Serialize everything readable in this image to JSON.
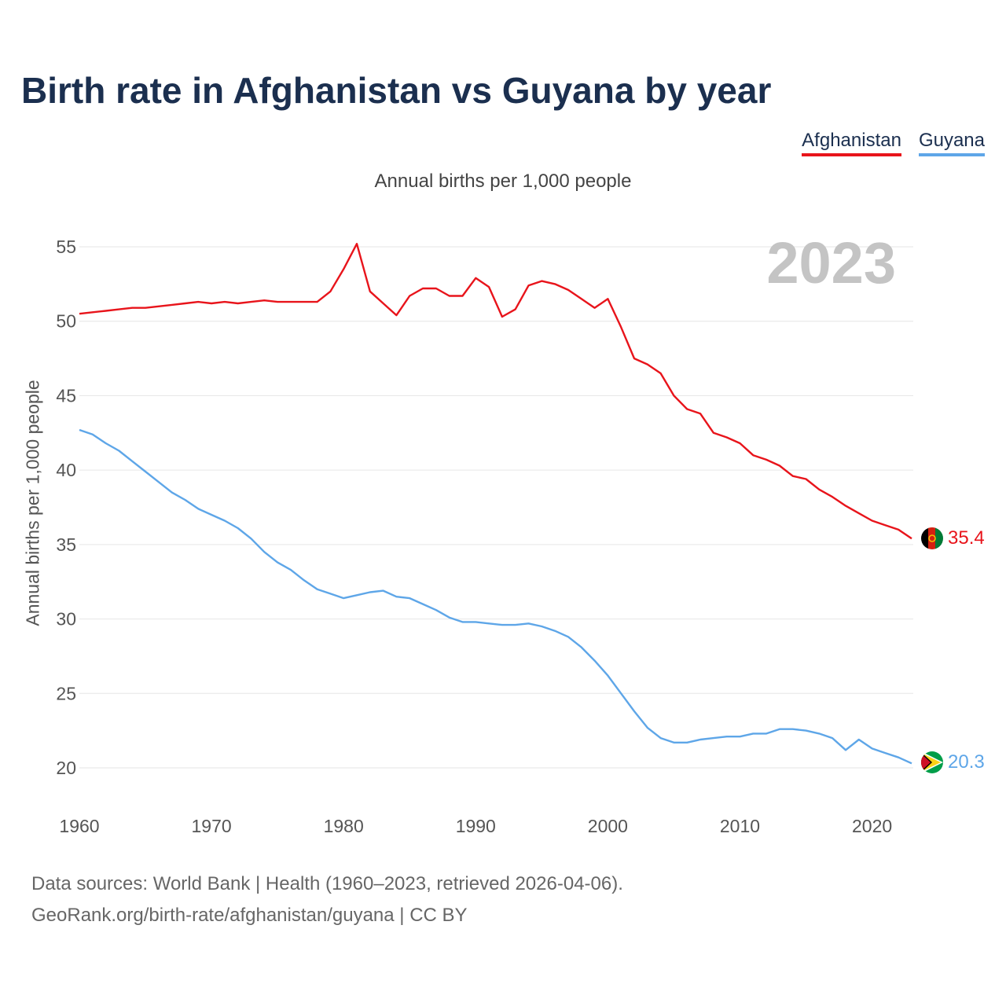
{
  "chart_data": {
    "type": "line",
    "title": "Birth rate in Afghanistan vs Guyana by year",
    "subtitle": "Annual births per 1,000 people",
    "ylabel": "Annual births per 1,000 people",
    "xlabel": "",
    "year_label": "2023",
    "xlim": [
      1960,
      2023
    ],
    "ylim": [
      18,
      57
    ],
    "yticks": [
      20,
      25,
      30,
      35,
      40,
      45,
      50,
      55
    ],
    "xticks": [
      1960,
      1970,
      1980,
      1990,
      2000,
      2010,
      2020
    ],
    "x": [
      1960,
      1961,
      1962,
      1963,
      1964,
      1965,
      1966,
      1967,
      1968,
      1969,
      1970,
      1971,
      1972,
      1973,
      1974,
      1975,
      1976,
      1977,
      1978,
      1979,
      1980,
      1981,
      1982,
      1983,
      1984,
      1985,
      1986,
      1987,
      1988,
      1989,
      1990,
      1991,
      1992,
      1993,
      1994,
      1995,
      1996,
      1997,
      1998,
      1999,
      2000,
      2001,
      2002,
      2003,
      2004,
      2005,
      2006,
      2007,
      2008,
      2009,
      2010,
      2011,
      2012,
      2013,
      2014,
      2015,
      2016,
      2017,
      2018,
      2019,
      2020,
      2021,
      2022,
      2023
    ],
    "series": [
      {
        "name": "Afghanistan",
        "color": "#e8141b",
        "end_label": "35.4",
        "values": [
          50.5,
          50.6,
          50.7,
          50.8,
          50.9,
          50.9,
          51.0,
          51.1,
          51.2,
          51.3,
          51.2,
          51.3,
          51.2,
          51.3,
          51.4,
          51.3,
          51.3,
          51.3,
          51.3,
          52.0,
          53.5,
          55.2,
          52.0,
          51.2,
          50.4,
          51.7,
          52.2,
          52.2,
          51.7,
          51.7,
          52.9,
          52.3,
          50.3,
          50.8,
          52.4,
          52.7,
          52.5,
          52.1,
          51.5,
          50.9,
          51.5,
          49.6,
          47.5,
          47.1,
          46.5,
          45.0,
          44.1,
          43.8,
          42.5,
          42.2,
          41.8,
          41.0,
          40.7,
          40.3,
          39.6,
          39.4,
          38.7,
          38.2,
          37.6,
          37.1,
          36.6,
          36.3,
          36.0,
          35.4
        ]
      },
      {
        "name": "Guyana",
        "color": "#5ea6e8",
        "end_label": "20.3",
        "values": [
          42.7,
          42.4,
          41.8,
          41.3,
          40.6,
          39.9,
          39.2,
          38.5,
          38.0,
          37.4,
          37.0,
          36.6,
          36.1,
          35.4,
          34.5,
          33.8,
          33.3,
          32.6,
          32.0,
          31.7,
          31.4,
          31.6,
          31.8,
          31.9,
          31.5,
          31.4,
          31.0,
          30.6,
          30.1,
          29.8,
          29.8,
          29.7,
          29.6,
          29.6,
          29.7,
          29.5,
          29.2,
          28.8,
          28.1,
          27.2,
          26.2,
          25.0,
          23.8,
          22.7,
          22.0,
          21.7,
          21.7,
          21.9,
          22.0,
          22.1,
          22.1,
          22.3,
          22.3,
          22.6,
          22.6,
          22.5,
          22.3,
          22.0,
          21.2,
          21.9,
          21.3,
          21.0,
          20.7,
          20.3
        ]
      }
    ]
  },
  "footer": {
    "line1": "Data sources: World Bank | Health (1960–2023, retrieved 2026-04-06).",
    "line2": "GeoRank.org/birth-rate/afghanistan/guyana | CC BY"
  }
}
